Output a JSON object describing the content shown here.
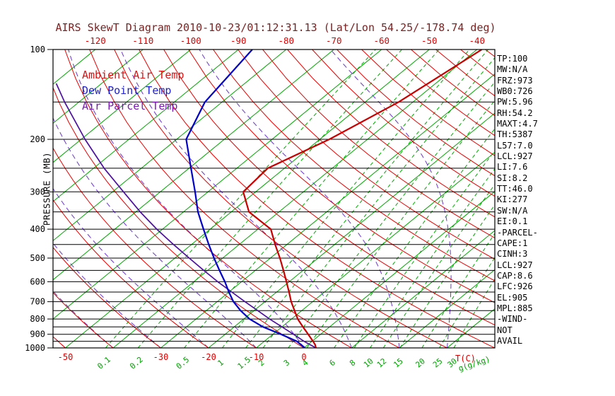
{
  "title": "AIRS SkewT Diagram 2010-10-23/01:12:31.13 (Lat/Lon 54.25/-178.74 deg)",
  "colors": {
    "title_color": "#7b2222",
    "axis_red": "#dd0000",
    "axis_green": "#00a000",
    "isotherm": "#00a800",
    "mixing_ratio": "#00a800",
    "dry_adiabat": "#e60000",
    "moist_adiabat": "#6a35c8",
    "frame": "#000000"
  },
  "legend": [
    {
      "label": "Ambient Air Temp",
      "color": "#dd1111"
    },
    {
      "label": "Dew Point Temp",
      "color": "#2020cc"
    },
    {
      "label": "Air Parcel Temp",
      "color": "#7d18b8"
    }
  ],
  "left_axis": {
    "label": "PRESSURE (MB)",
    "ticks": [
      100,
      200,
      300,
      400,
      500,
      600,
      700,
      800,
      900,
      1000
    ]
  },
  "top_axis": {
    "ticks": [
      -120,
      -110,
      -100,
      -90,
      -80,
      -70,
      -60,
      -50,
      -40
    ]
  },
  "bottom_axis": {
    "temp_ticks": [
      -50,
      -30,
      -20,
      -10,
      0
    ],
    "temp_label": "T(C)",
    "mixing_ticks": [
      0.1,
      0.2,
      0.5,
      1,
      1.5,
      2,
      3,
      4,
      6,
      8,
      10,
      12,
      15,
      20,
      25,
      30
    ],
    "mixing_label": "g(g/kg)"
  },
  "right_panel": {
    "lines": [
      "TP:100",
      "MW:N/A",
      "FRZ:973",
      "WB0:726",
      "PW:5.96",
      "RH:54.2",
      "MAXT:4.7",
      "TH:5387",
      "L57:7.0",
      "LCL:927",
      "LI:7.6",
      "SI:8.2",
      "TT:46.0",
      "KI:277",
      "SW:N/A",
      "EI:0.1",
      "-PARCEL-",
      "CAPE:1",
      "CINH:3",
      "LCL:927",
      "CAP:8.6",
      "LFC:926",
      "EL:905",
      "MPL:885",
      "-WIND-",
      "NOT",
      "AVAIL"
    ]
  },
  "chart_data": {
    "type": "line",
    "title": "AIRS SkewT Diagram 2010-10-23/01:12:31.13 (Lat/Lon 54.25/-178.74 deg)",
    "xlabel": "T(C)",
    "ylabel": "PRESSURE (MB)",
    "pressure_log_scale": true,
    "pressure_range_mb": [
      100,
      1000
    ],
    "temp_labels_top_c": [
      -120,
      -110,
      -100,
      -90,
      -80,
      -70,
      -60,
      -50,
      -40
    ],
    "temp_labels_bottom_c": [
      -50,
      -30,
      -20,
      -10,
      0
    ],
    "grid": {
      "pressure_lines_mb": [
        100,
        150,
        200,
        250,
        300,
        350,
        400,
        450,
        500,
        550,
        600,
        650,
        700,
        750,
        800,
        850,
        900,
        950,
        1000
      ],
      "isotherms_c": {
        "min": -130,
        "max": 40,
        "step": 10
      },
      "dry_adiabats_theta_c": {
        "min": -50,
        "max": 190,
        "step": 10
      },
      "moist_adiabats_c": {
        "min": -50,
        "max": 90,
        "step": 10
      },
      "mixing_ratio_g_kg": [
        0.1,
        0.2,
        0.5,
        1,
        1.5,
        2,
        3,
        4,
        6,
        8,
        10,
        12,
        15,
        20,
        25,
        30
      ]
    },
    "series": [
      {
        "key": "parcel-temp",
        "name": "Air Parcel Temp",
        "color": "#4d0f9e",
        "width": 1.7,
        "points": [
          {
            "p": 1000,
            "t": 2.5
          },
          {
            "p": 950,
            "t": -1.7
          },
          {
            "p": 900,
            "t": -5.7
          },
          {
            "p": 850,
            "t": -10.0
          },
          {
            "p": 800,
            "t": -14.6
          },
          {
            "p": 750,
            "t": -19.2
          },
          {
            "p": 700,
            "t": -24.2
          },
          {
            "p": 650,
            "t": -29.4
          },
          {
            "p": 600,
            "t": -35.0
          },
          {
            "p": 550,
            "t": -40.8
          },
          {
            "p": 500,
            "t": -47.0
          },
          {
            "p": 450,
            "t": -53.8
          },
          {
            "p": 400,
            "t": -61.2
          },
          {
            "p": 350,
            "t": -69.1
          },
          {
            "p": 300,
            "t": -77.7
          },
          {
            "p": 250,
            "t": -87.8
          },
          {
            "p": 200,
            "t": -99.2
          },
          {
            "p": 150,
            "t": -113.0
          },
          {
            "p": 130,
            "t": -119.5
          }
        ]
      },
      {
        "key": "dewpoint",
        "name": "Dew Point Temp",
        "color": "#0000c8",
        "width": 2.2,
        "points": [
          {
            "p": 1000,
            "t": 0.2
          },
          {
            "p": 950,
            "t": -3.2
          },
          {
            "p": 900,
            "t": -8.3
          },
          {
            "p": 850,
            "t": -14.0
          },
          {
            "p": 800,
            "t": -18.8
          },
          {
            "p": 750,
            "t": -22.8
          },
          {
            "p": 700,
            "t": -26.6
          },
          {
            "p": 650,
            "t": -30.0
          },
          {
            "p": 600,
            "t": -33.5
          },
          {
            "p": 550,
            "t": -37.5
          },
          {
            "p": 500,
            "t": -41.8
          },
          {
            "p": 450,
            "t": -46.4
          },
          {
            "p": 400,
            "t": -51.4
          },
          {
            "p": 350,
            "t": -57.0
          },
          {
            "p": 300,
            "t": -62.7
          },
          {
            "p": 250,
            "t": -69.6
          },
          {
            "p": 200,
            "t": -78.0
          },
          {
            "p": 150,
            "t": -83.6
          },
          {
            "p": 100,
            "t": -87.1
          }
        ]
      },
      {
        "key": "ambient-temp",
        "name": "Ambient Air Temp",
        "color": "#c80000",
        "width": 2.2,
        "points": [
          {
            "p": 1000,
            "t": 2.5
          },
          {
            "p": 975,
            "t": 1.5
          },
          {
            "p": 950,
            "t": 0.2
          },
          {
            "p": 900,
            "t": -2.6
          },
          {
            "p": 850,
            "t": -5.6
          },
          {
            "p": 800,
            "t": -8.7
          },
          {
            "p": 750,
            "t": -11.5
          },
          {
            "p": 700,
            "t": -14.5
          },
          {
            "p": 650,
            "t": -17.4
          },
          {
            "p": 600,
            "t": -20.6
          },
          {
            "p": 550,
            "t": -24.1
          },
          {
            "p": 500,
            "t": -28.0
          },
          {
            "p": 450,
            "t": -32.5
          },
          {
            "p": 400,
            "t": -37.3
          },
          {
            "p": 350,
            "t": -46.3
          },
          {
            "p": 300,
            "t": -52.6
          },
          {
            "p": 250,
            "t": -53.5
          },
          {
            "p": 200,
            "t": -48.0
          },
          {
            "p": 150,
            "t": -43.0
          },
          {
            "p": 100,
            "t": -39.0
          }
        ]
      }
    ]
  }
}
